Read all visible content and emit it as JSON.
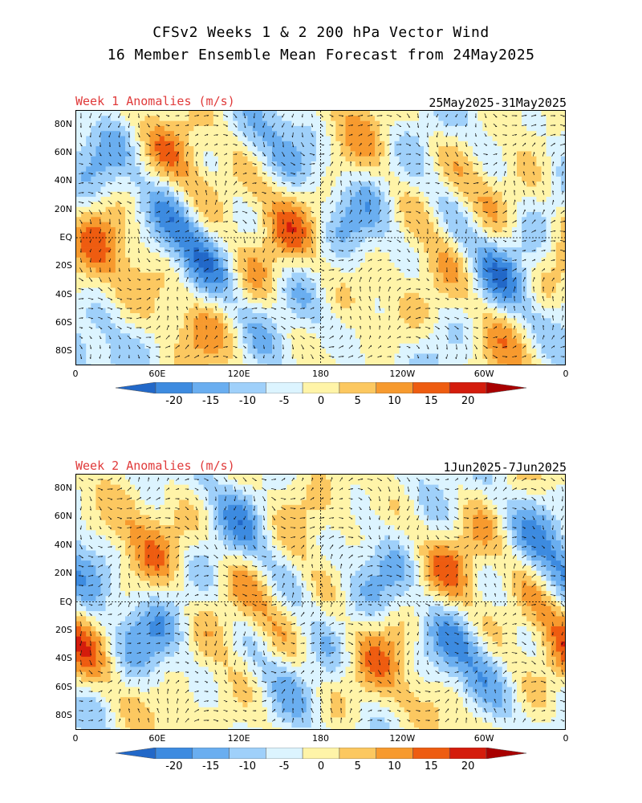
{
  "header": {
    "title_line1": "CFSv2 Weeks 1 & 2 200 hPa Vector Wind",
    "title_line2": "16 Member Ensemble Mean Forecast from 24May2025"
  },
  "panels": [
    {
      "label": "Week 1 Anomalies (m/s)",
      "date_range": "25May2025-31May2025"
    },
    {
      "label": "Week 2 Anomalies (m/s)",
      "date_range": "1Jun2025-7Jun2025"
    }
  ],
  "axes": {
    "lat_labels": [
      "80N",
      "60N",
      "40N",
      "20N",
      "EQ",
      "20S",
      "40S",
      "60S",
      "80S"
    ],
    "lat_values": [
      80,
      60,
      40,
      20,
      0,
      -20,
      -40,
      -60,
      -80
    ],
    "lon_labels": [
      "0",
      "60E",
      "120E",
      "180",
      "120W",
      "60W",
      "0"
    ],
    "lon_values": [
      0,
      60,
      120,
      180,
      240,
      300,
      360
    ]
  },
  "colorbar": {
    "labels": [
      "-20",
      "-15",
      "-10",
      "-5",
      "0",
      "5",
      "10",
      "15",
      "20"
    ],
    "colors": [
      "#2268c8",
      "#3d8be0",
      "#6aaef0",
      "#9fd0fa",
      "#dcf4ff",
      "#fff4a8",
      "#fcc860",
      "#f79a2e",
      "#ee5c10",
      "#d41c0c",
      "#a80000"
    ]
  }
}
